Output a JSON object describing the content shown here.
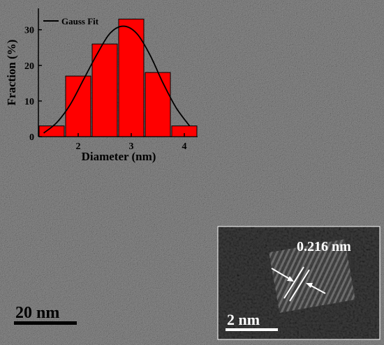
{
  "micrograph": {
    "scale_bar_main": "20 nm",
    "scale_bar_inset": "2 nm",
    "lattice_spacing": "0.216 nm"
  },
  "chart_data": {
    "type": "bar",
    "xlabel": "Diameter (nm)",
    "ylabel": "Fraction (%)",
    "x_ticks": [
      2,
      3,
      4
    ],
    "y_ticks": [
      0,
      10,
      20,
      30
    ],
    "xlim": [
      1.25,
      4.25
    ],
    "ylim": [
      0,
      36
    ],
    "bar_color": "#ff0000",
    "curve_color": "#000000",
    "series": [
      {
        "kind": "bars",
        "x": [
          1.5,
          2.0,
          2.5,
          3.0,
          3.5,
          4.0
        ],
        "values": [
          3,
          17,
          26,
          33,
          18,
          3
        ]
      },
      {
        "kind": "curve",
        "name": "Gauss Fit",
        "x": [
          1.35,
          1.6,
          1.85,
          2.1,
          2.35,
          2.6,
          2.85,
          3.1,
          3.35,
          3.6,
          3.85,
          4.1
        ],
        "values": [
          1,
          4,
          9,
          16,
          23,
          29,
          31,
          29,
          23,
          15,
          8,
          3
        ]
      }
    ],
    "legend_position": "top-left"
  }
}
